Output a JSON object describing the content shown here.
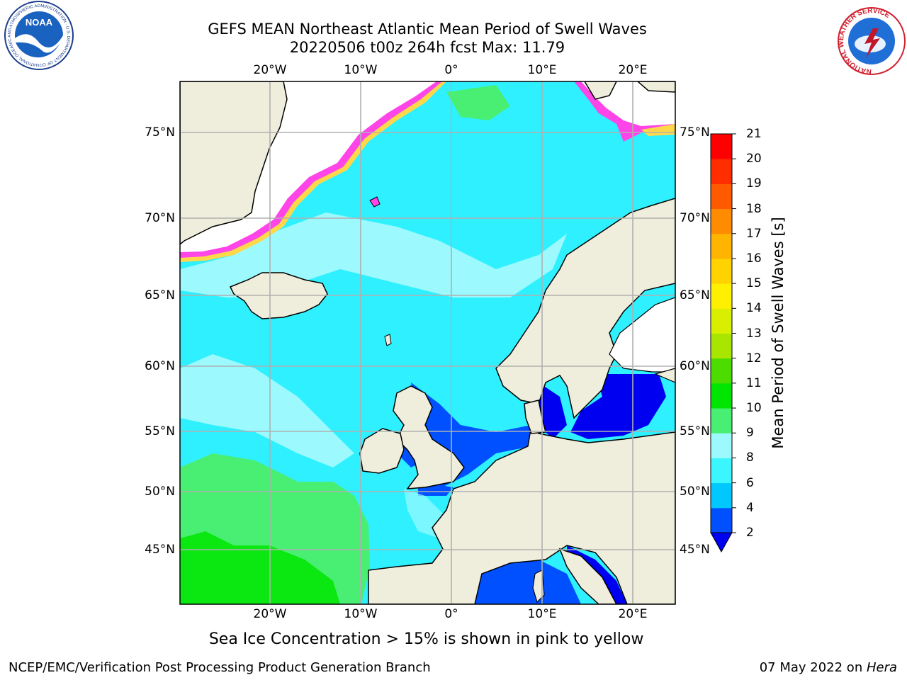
{
  "header": {
    "title_line1": "GEFS MEAN Northeast Atlantic Mean Period of Swell Waves",
    "title_line2": "20220506 t00z 264h fcst   Max: 11.79"
  },
  "map": {
    "lon_ticks": [
      {
        "value": -20,
        "label": "20°W"
      },
      {
        "value": -10,
        "label": "10°W"
      },
      {
        "value": 0,
        "label": "0°"
      },
      {
        "value": 10,
        "label": "10°E"
      },
      {
        "value": 20,
        "label": "20°E"
      }
    ],
    "lat_ticks": [
      {
        "value": 75,
        "label": "75°N"
      },
      {
        "value": 70,
        "label": "70°N"
      },
      {
        "value": 65,
        "label": "65°N"
      },
      {
        "value": 60,
        "label": "60°N"
      },
      {
        "value": 55,
        "label": "55°N"
      },
      {
        "value": 50,
        "label": "50°N"
      },
      {
        "value": 45,
        "label": "45°N"
      }
    ],
    "colors": {
      "land": "#efeedc",
      "grid": "#b0b0b0",
      "ocean_base": "#2ef0ff",
      "ice_pink": "#ff44e8",
      "ice_yellow": "#ffd84a"
    }
  },
  "colorbar": {
    "label": "Mean Period of Swell Waves [s]",
    "ticks": [
      "2",
      "4",
      "6",
      "8",
      "9",
      "10",
      "11",
      "12",
      "13",
      "14",
      "15",
      "16",
      "17",
      "18",
      "19",
      "20",
      "21"
    ],
    "colors": [
      "#0050ff",
      "#00c8ff",
      "#3cf6ff",
      "#9cfaff",
      "#49ef72",
      "#00e600",
      "#4cdc00",
      "#a8e600",
      "#d8f000",
      "#fff000",
      "#ffd200",
      "#ffb400",
      "#ff8c00",
      "#ff5a00",
      "#ff2d00",
      "#ff0000"
    ],
    "under_color": "#0000f0"
  },
  "annotation": {
    "ice_note": "Sea Ice Concentration > 15% is shown in pink to yellow"
  },
  "footer": {
    "left": "NCEP/EMC/Verification Post Processing Product Generation Branch",
    "date": "07 May 2022 on ",
    "host": "Hera"
  },
  "logos": {
    "noaa_text": "NOAA",
    "noaa_ring": "NATIONAL OCEANIC AND ATMOSPHERIC ADMINISTRATION · U.S. DEPARTMENT OF COMMERCE",
    "nws_ring": "NATIONAL WEATHER SERVICE"
  }
}
